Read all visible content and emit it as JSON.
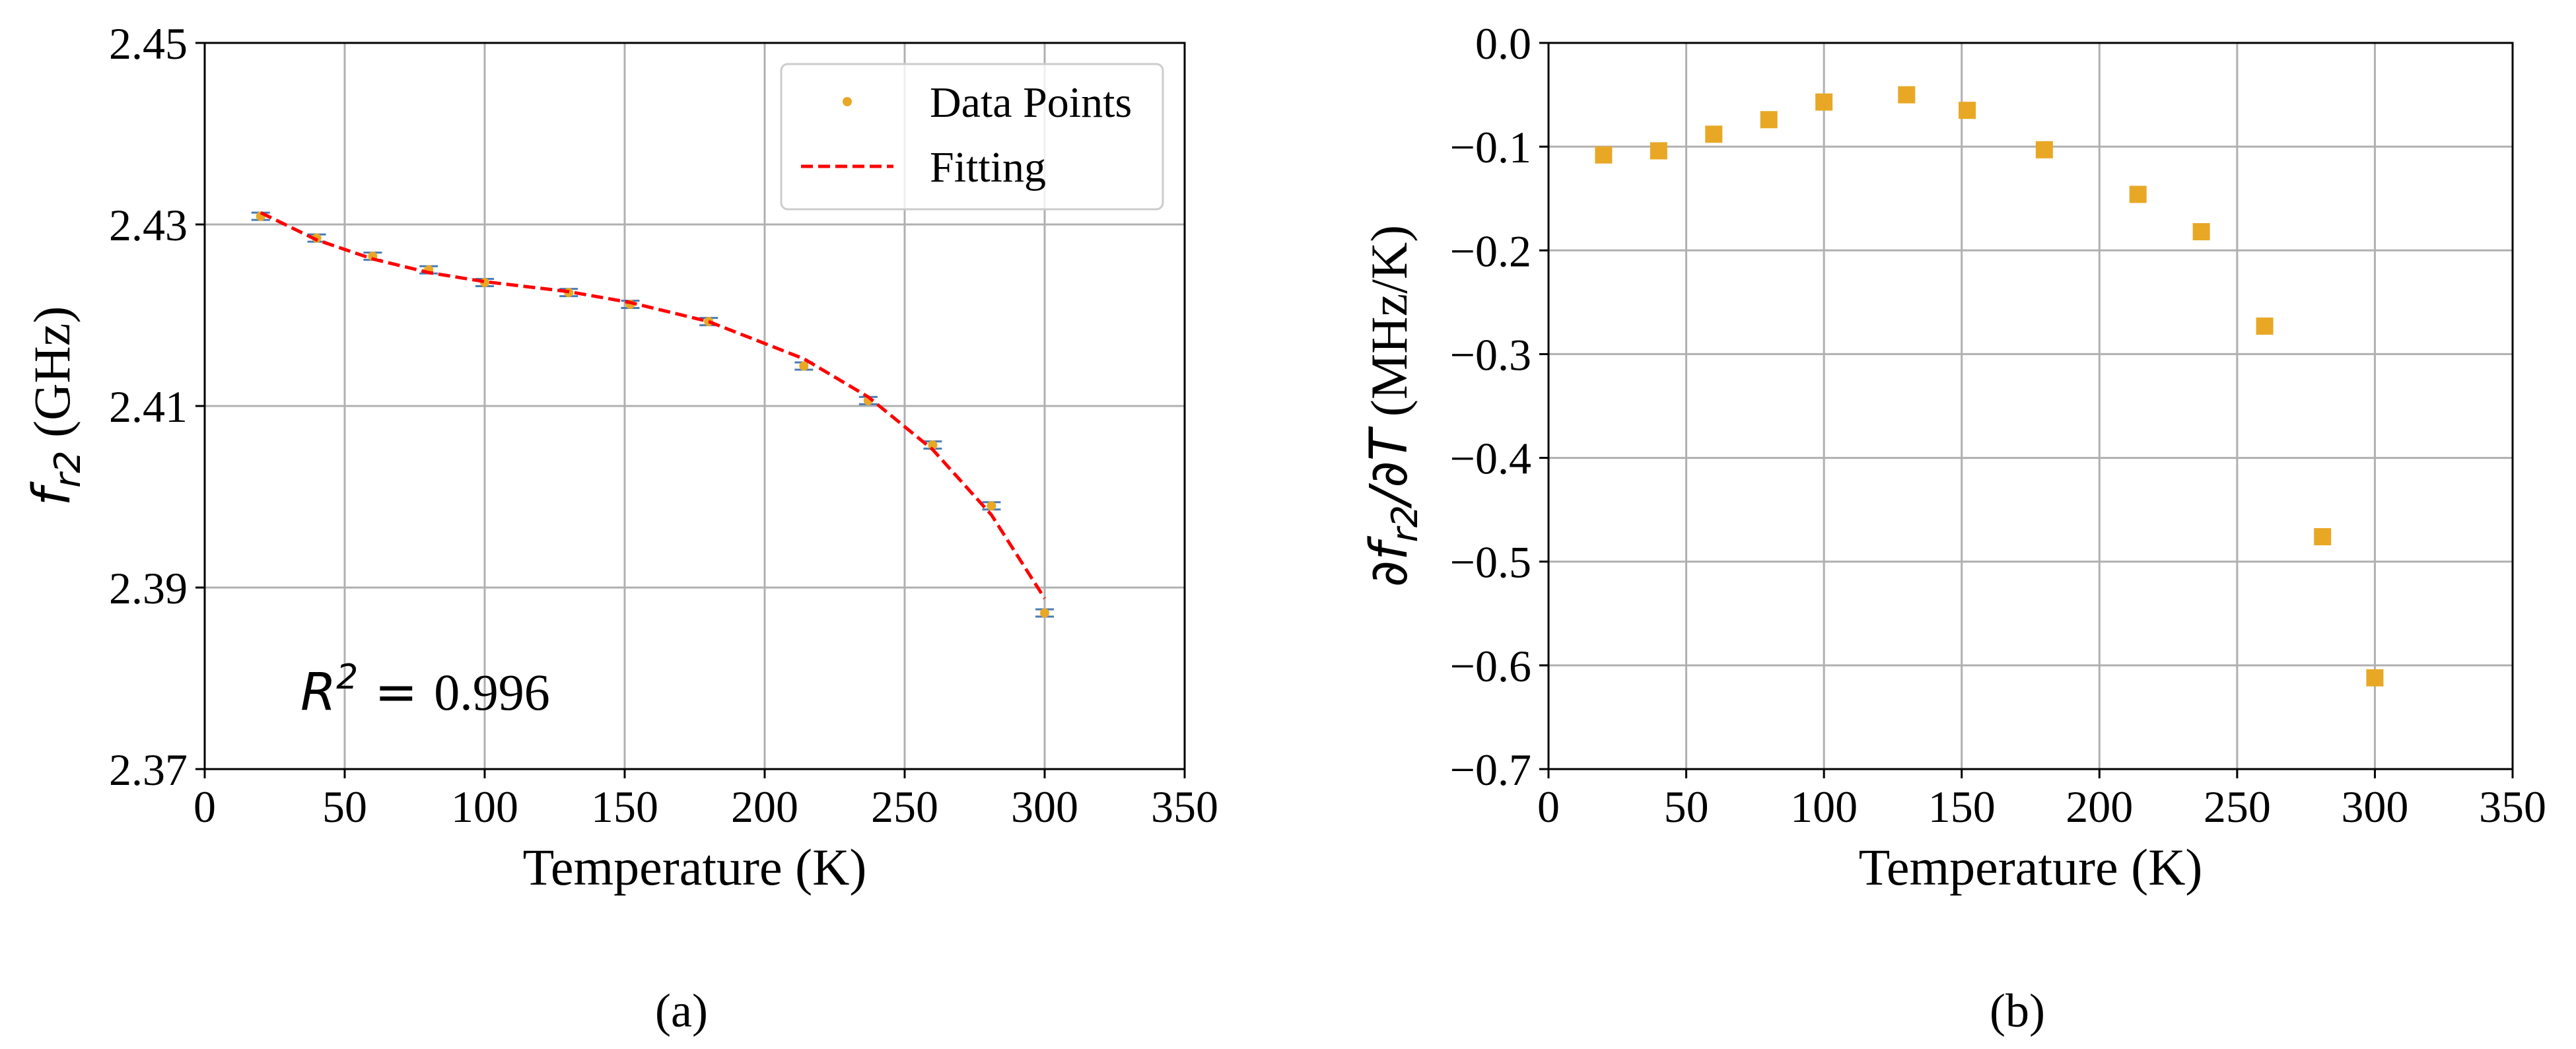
{
  "chart_data": [
    {
      "type": "line",
      "panel_label": "(a)",
      "xlabel": "Temperature (K)",
      "ylabel": {
        "symbol": "f",
        "subscript": "r2",
        "unit": " (GHz)"
      },
      "xlim": [
        0,
        350
      ],
      "ylim": [
        2.37,
        2.45
      ],
      "xticks": [
        0,
        50,
        100,
        150,
        200,
        250,
        300,
        350
      ],
      "xtick_labels": [
        "0",
        "50",
        "100",
        "150",
        "200",
        "250",
        "300",
        "350"
      ],
      "yticks": [
        2.37,
        2.39,
        2.41,
        2.43,
        2.45
      ],
      "ytick_labels": [
        "2.37",
        "2.39",
        "2.41",
        "2.43",
        "2.45"
      ],
      "grid": true,
      "legend_position": "top-right",
      "legend": [
        "Data Points",
        "Fitting"
      ],
      "annotation": {
        "symbol": "R",
        "superscript": "2",
        "equals": " = ",
        "value": "0.996",
        "position": "bottom-left"
      },
      "series": [
        {
          "name": "Data Points",
          "style": "points-with-errorbars",
          "color": "#E8A825",
          "x": [
            20,
            40,
            60,
            80,
            100,
            130,
            152,
            180,
            214,
            237,
            260,
            281,
            300
          ],
          "y": [
            2.4309,
            2.4285,
            2.4265,
            2.425,
            2.4236,
            2.4225,
            2.4212,
            2.4193,
            2.4144,
            2.4106,
            2.4057,
            2.399,
            2.3872
          ],
          "yerr": 0.0004
        },
        {
          "name": "Fitting",
          "style": "dashed-line",
          "color": "#FF0000",
          "x": [
            20,
            40,
            60,
            80,
            100,
            130,
            152,
            180,
            214,
            237,
            260,
            281,
            300
          ],
          "y": [
            2.4313,
            2.4283,
            2.4262,
            2.4247,
            2.4237,
            2.4226,
            2.4214,
            2.4193,
            2.4152,
            2.411,
            2.4052,
            2.398,
            2.3888
          ]
        }
      ]
    },
    {
      "type": "scatter",
      "panel_label": "(b)",
      "xlabel": "Temperature (K)",
      "ylabel": {
        "partial": "∂",
        "symbol": "f",
        "subscript": "r2",
        "slash": "/∂",
        "symbol2": "T",
        "unit": " (MHz/K)"
      },
      "xlim": [
        0,
        350
      ],
      "ylim": [
        -0.7,
        0.0
      ],
      "xticks": [
        0,
        50,
        100,
        150,
        200,
        250,
        300,
        350
      ],
      "xtick_labels": [
        "0",
        "50",
        "100",
        "150",
        "200",
        "250",
        "300",
        "350"
      ],
      "yticks": [
        0.0,
        -0.1,
        -0.2,
        -0.3,
        -0.4,
        -0.5,
        -0.6,
        -0.7
      ],
      "ytick_labels": [
        "0.0",
        "−0.1",
        "−0.2",
        "−0.3",
        "−0.4",
        "−0.5",
        "−0.6",
        "−0.7"
      ],
      "grid": true,
      "series": [
        {
          "name": "df/dT",
          "marker": "square",
          "color": "#E8A825",
          "x": [
            20,
            40,
            60,
            80,
            100,
            130,
            152,
            180,
            214,
            237,
            260,
            281,
            300
          ],
          "y": [
            -0.108,
            -0.104,
            -0.088,
            -0.074,
            -0.057,
            -0.05,
            -0.065,
            -0.103,
            -0.146,
            -0.182,
            -0.273,
            -0.476,
            -0.612
          ]
        }
      ]
    }
  ]
}
